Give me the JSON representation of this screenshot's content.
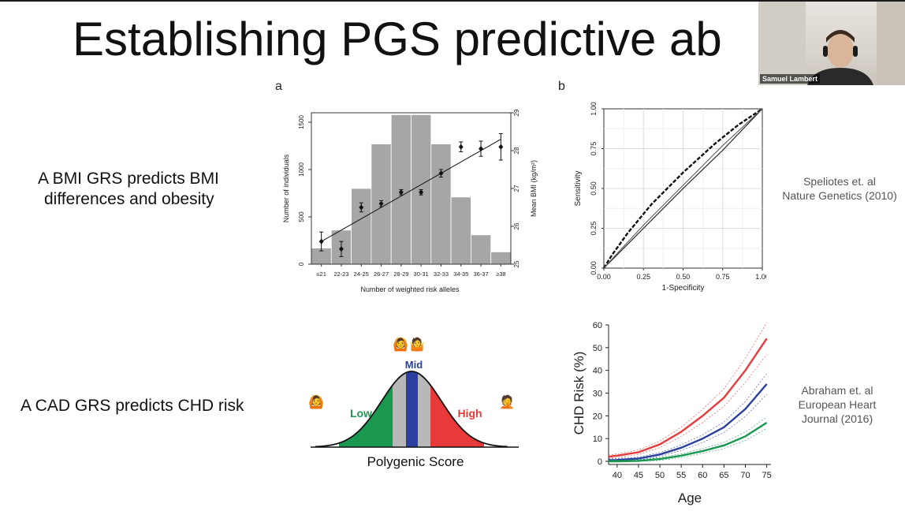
{
  "slide": {
    "title": "Establishing PGS predictive ab",
    "panel_a_label": "a",
    "panel_b_label": "b",
    "bmi_text_line1": "A BMI GRS predicts BMI",
    "bmi_text_line2": "differences and obesity",
    "cad_text": "A CAD GRS predicts CHD risk",
    "cite1_line1": "Speliotes et. al",
    "cite1_line2": "Nature Genetics (2010)",
    "cite2_line1": "Abraham et. al",
    "cite2_line2": "European Heart",
    "cite2_line3": "Journal (2016)"
  },
  "webcam": {
    "name": "Samuel Lambert"
  },
  "colors": {
    "hist_bar": "#a6a6a6",
    "low": "#1a9850",
    "mid": "#2b3f9e",
    "high": "#e83a3a",
    "mid_band": "#b8b8b8"
  },
  "icons": [
    "person-low-icon",
    "person-mid-icon",
    "person-mid-2-icon",
    "person-high-icon"
  ],
  "chart_data": [
    {
      "type": "bar",
      "xlabel": "Number of weighted risk alleles",
      "ylabel": "Number of individuals",
      "y2label": "Mean BMI (kg/m²)",
      "categories": [
        "≤21",
        "22-23",
        "24-25",
        "26-27",
        "28-29",
        "30-31",
        "32-33",
        "34-35",
        "36-37",
        "≥38"
      ],
      "values": [
        170,
        360,
        800,
        1270,
        1580,
        1580,
        1270,
        710,
        310,
        130
      ],
      "ylim": [
        0,
        1600
      ],
      "yticks": [
        0,
        500,
        1000,
        1500
      ],
      "y2lim": [
        25,
        29
      ],
      "y2ticks": [
        25,
        26,
        27,
        28,
        29
      ],
      "series": [
        {
          "mean_bmi": [
            25.6,
            25.4,
            26.5,
            26.6,
            26.9,
            26.9,
            27.4,
            28.1,
            28.05,
            28.1
          ],
          "err": [
            0.25,
            0.2,
            0.12,
            0.08,
            0.07,
            0.07,
            0.1,
            0.13,
            0.2,
            0.35
          ]
        }
      ],
      "fit_line": [
        25.6,
        28.3
      ]
    },
    {
      "type": "line",
      "xlabel": "1-Specificity",
      "ylabel": "Sensitivity",
      "xlim": [
        0,
        1
      ],
      "ylim": [
        0,
        1
      ],
      "ticks": [
        "0.00",
        "0.25",
        "0.50",
        "0.75",
        "1.00"
      ],
      "grid": true,
      "series": [
        {
          "x": [
            0,
            0.05,
            0.15,
            0.3,
            0.5,
            0.7,
            0.85,
            1
          ],
          "y": [
            0,
            0.08,
            0.22,
            0.4,
            0.6,
            0.78,
            0.9,
            1
          ]
        },
        {
          "x": [
            0,
            0.1,
            0.25,
            0.5,
            0.75,
            1
          ],
          "y": [
            0,
            0.1,
            0.25,
            0.5,
            0.74,
            1
          ]
        },
        {
          "x": [
            0,
            0.1,
            0.25,
            0.5,
            0.75,
            1
          ],
          "y": [
            0,
            0.11,
            0.27,
            0.52,
            0.77,
            1
          ]
        }
      ]
    },
    {
      "type": "diagram",
      "xlabel": "Polygenic Score",
      "labels": {
        "low": "Low",
        "mid": "Mid",
        "high": "High"
      }
    },
    {
      "type": "line",
      "xlabel": "Age",
      "ylabel": "CHD Risk (%)",
      "xlim": [
        38,
        76
      ],
      "ylim": [
        0,
        60
      ],
      "xticks": [
        40,
        45,
        50,
        55,
        60,
        65,
        70,
        75
      ],
      "yticks": [
        0,
        10,
        20,
        30,
        40,
        50,
        60
      ],
      "series": [
        {
          "color": "#e83a3a",
          "x": [
            38,
            40,
            45,
            50,
            55,
            60,
            65,
            70,
            75
          ],
          "y": [
            2,
            2.5,
            4,
            7.5,
            13,
            20,
            28,
            40,
            54
          ]
        },
        {
          "color": "#2b3f9e",
          "x": [
            38,
            40,
            45,
            50,
            55,
            60,
            65,
            70,
            75
          ],
          "y": [
            0.5,
            0.6,
            1.2,
            3,
            6,
            10,
            15,
            23,
            34
          ]
        },
        {
          "color": "#1a9850",
          "x": [
            38,
            40,
            45,
            50,
            55,
            60,
            65,
            70,
            75
          ],
          "y": [
            0,
            0,
            0.2,
            1,
            2.5,
            4.5,
            7,
            11,
            17
          ]
        }
      ]
    }
  ]
}
